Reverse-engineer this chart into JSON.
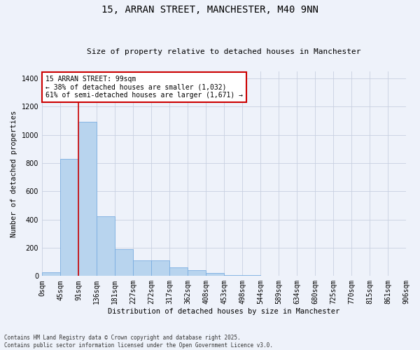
{
  "title_line1": "15, ARRAN STREET, MANCHESTER, M40 9NN",
  "title_line2": "Size of property relative to detached houses in Manchester",
  "xlabel": "Distribution of detached houses by size in Manchester",
  "ylabel": "Number of detached properties",
  "bar_values": [
    25,
    830,
    1095,
    425,
    190,
    110,
    110,
    63,
    40,
    20,
    8,
    5,
    2,
    0,
    0,
    0,
    0,
    0,
    0,
    0
  ],
  "bar_labels": [
    "0sqm",
    "45sqm",
    "91sqm",
    "136sqm",
    "181sqm",
    "227sqm",
    "272sqm",
    "317sqm",
    "362sqm",
    "408sqm",
    "453sqm",
    "498sqm",
    "544sqm",
    "589sqm",
    "634sqm",
    "680sqm",
    "725sqm",
    "770sqm",
    "815sqm",
    "861sqm",
    "906sqm"
  ],
  "bar_color": "#b8d4ee",
  "bar_edge_color": "#7aade0",
  "background_color": "#eef2fa",
  "grid_color": "#c8d0e0",
  "vline_x": 2,
  "vline_color": "#cc0000",
  "annotation_text": "15 ARRAN STREET: 99sqm\n← 38% of detached houses are smaller (1,032)\n61% of semi-detached houses are larger (1,671) →",
  "annotation_box_color": "white",
  "annotation_box_edge_color": "#cc0000",
  "footer_text": "Contains HM Land Registry data © Crown copyright and database right 2025.\nContains public sector information licensed under the Open Government Licence v3.0.",
  "ylim": [
    0,
    1450
  ],
  "yticks": [
    0,
    200,
    400,
    600,
    800,
    1000,
    1200,
    1400
  ],
  "figsize": [
    6.0,
    5.0
  ],
  "dpi": 100,
  "title1_fontsize": 10,
  "title2_fontsize": 8,
  "axis_label_fontsize": 7.5,
  "tick_fontsize": 7,
  "annot_fontsize": 7,
  "footer_fontsize": 5.5
}
